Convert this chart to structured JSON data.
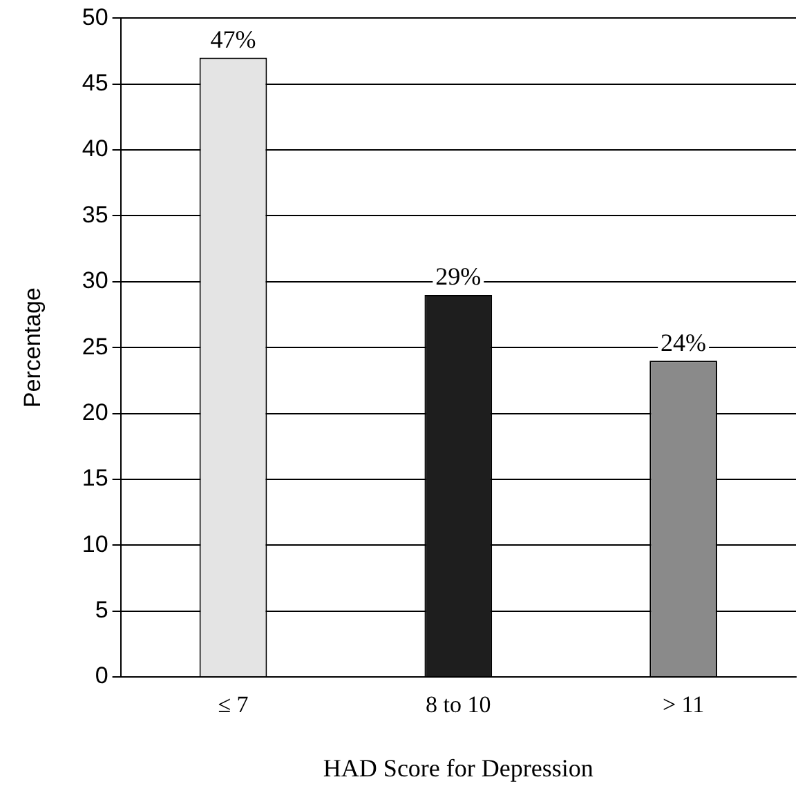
{
  "chart_data": {
    "type": "bar",
    "xlabel": "HAD Score for Depression",
    "ylabel": "Percentage",
    "categories": [
      "≤ 7",
      "8 to 10",
      "> 11"
    ],
    "values": [
      47,
      29,
      24
    ],
    "colors": [
      "#e4e4e4",
      "#1e1e1e",
      "#8a8a8a"
    ],
    "value_labels": [
      "47%",
      "29%",
      "24%"
    ],
    "ylim": [
      0,
      50
    ],
    "yticks": [
      0,
      5,
      10,
      15,
      20,
      25,
      30,
      35,
      40,
      45,
      50
    ],
    "grid": "y",
    "legend": false
  }
}
